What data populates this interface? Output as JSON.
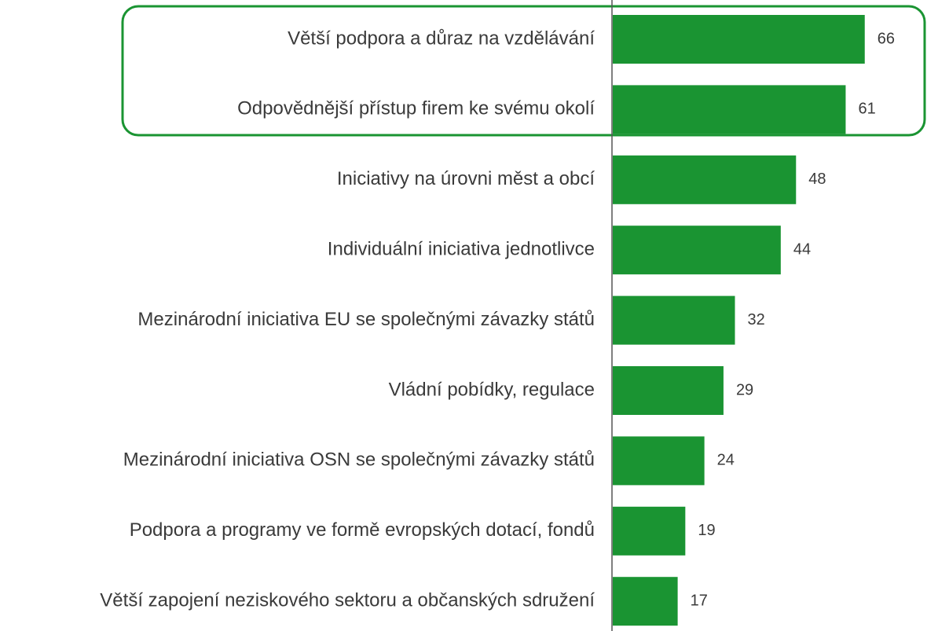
{
  "chart_data": {
    "type": "bar",
    "orientation": "horizontal",
    "color": "#1a9432",
    "categories": [
      "Větší podpora a důraz na vzdělávání",
      "Odpovědnější přístup firem ke svému okolí",
      "Iniciativy na úrovni měst a obcí",
      "Individuální iniciativa jednotlivce",
      "Mezinárodní iniciativa EU se společnými závazky států",
      "Vládní pobídky, regulace",
      "Mezinárodní iniciativa OSN se společnými závazky států",
      "Podpora a programy ve formě evropských dotací, fondů",
      "Větší zapojení neziskového sektoru a občanských sdružení"
    ],
    "values": [
      66,
      61,
      48,
      44,
      32,
      29,
      24,
      19,
      17
    ]
  }
}
